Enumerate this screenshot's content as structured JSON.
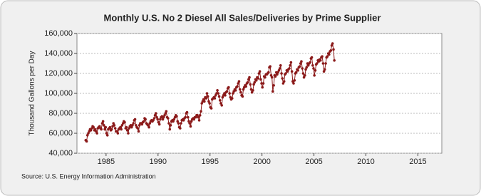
{
  "chart_data": {
    "type": "line",
    "title": "Monthly U.S. No 2 Diesel All Sales/Deliveries by Prime Supplier",
    "y_label": "Thousand Gallons per Day",
    "source": "Source: U.S. Energy Information Administration",
    "x": [
      1983.04,
      1983.13,
      1983.21,
      1983.29,
      1983.38,
      1983.46,
      1983.54,
      1983.63,
      1983.71,
      1983.79,
      1983.88,
      1983.96,
      1984.04,
      1984.13,
      1984.21,
      1984.29,
      1984.38,
      1984.46,
      1984.54,
      1984.63,
      1984.71,
      1984.79,
      1984.88,
      1984.96,
      1985.04,
      1985.13,
      1985.21,
      1985.29,
      1985.38,
      1985.46,
      1985.54,
      1985.63,
      1985.71,
      1985.79,
      1985.88,
      1985.96,
      1986.04,
      1986.13,
      1986.21,
      1986.29,
      1986.38,
      1986.46,
      1986.54,
      1986.63,
      1986.71,
      1986.79,
      1986.88,
      1986.96,
      1987.04,
      1987.13,
      1987.21,
      1987.29,
      1987.38,
      1987.46,
      1987.54,
      1987.63,
      1987.71,
      1987.79,
      1987.88,
      1987.96,
      1988.04,
      1988.13,
      1988.21,
      1988.29,
      1988.38,
      1988.46,
      1988.54,
      1988.63,
      1988.71,
      1988.79,
      1988.88,
      1988.96,
      1989.04,
      1989.13,
      1989.21,
      1989.29,
      1989.38,
      1989.46,
      1989.54,
      1989.63,
      1989.71,
      1989.79,
      1989.88,
      1989.96,
      1990.04,
      1990.13,
      1990.21,
      1990.29,
      1990.38,
      1990.46,
      1990.54,
      1990.63,
      1990.71,
      1990.79,
      1990.88,
      1990.96,
      1991.04,
      1991.13,
      1991.21,
      1991.29,
      1991.38,
      1991.46,
      1991.54,
      1991.63,
      1991.71,
      1991.79,
      1991.88,
      1991.96,
      1992.04,
      1992.13,
      1992.21,
      1992.29,
      1992.38,
      1992.46,
      1992.54,
      1992.63,
      1992.71,
      1992.79,
      1992.88,
      1992.96,
      1993.04,
      1993.13,
      1993.21,
      1993.29,
      1993.38,
      1993.46,
      1993.54,
      1993.63,
      1993.71,
      1993.79,
      1993.88,
      1993.96,
      1994.04,
      1994.13,
      1994.21,
      1994.29,
      1994.38,
      1994.46,
      1994.54,
      1994.63,
      1994.71,
      1994.79,
      1994.88,
      1994.96,
      1995.04,
      1995.13,
      1995.21,
      1995.29,
      1995.38,
      1995.46,
      1995.54,
      1995.63,
      1995.71,
      1995.79,
      1995.88,
      1995.96,
      1996.04,
      1996.13,
      1996.21,
      1996.29,
      1996.38,
      1996.46,
      1996.54,
      1996.63,
      1996.71,
      1996.79,
      1996.88,
      1996.96,
      1997.04,
      1997.13,
      1997.21,
      1997.29,
      1997.38,
      1997.46,
      1997.54,
      1997.63,
      1997.71,
      1997.79,
      1997.88,
      1997.96,
      1998.04,
      1998.13,
      1998.21,
      1998.29,
      1998.38,
      1998.46,
      1998.54,
      1998.63,
      1998.71,
      1998.79,
      1998.88,
      1998.96,
      1999.04,
      1999.13,
      1999.21,
      1999.29,
      1999.38,
      1999.46,
      1999.54,
      1999.63,
      1999.71,
      1999.79,
      1999.88,
      1999.96,
      2000.04,
      2000.13,
      2000.21,
      2000.29,
      2000.38,
      2000.46,
      2000.54,
      2000.63,
      2000.71,
      2000.79,
      2000.88,
      2000.96,
      2001.04,
      2001.13,
      2001.21,
      2001.29,
      2001.38,
      2001.46,
      2001.54,
      2001.63,
      2001.71,
      2001.79,
      2001.88,
      2001.96,
      2002.04,
      2002.13,
      2002.21,
      2002.29,
      2002.38,
      2002.46,
      2002.54,
      2002.63,
      2002.71,
      2002.79,
      2002.88,
      2002.96,
      2003.04,
      2003.13,
      2003.21,
      2003.29,
      2003.38,
      2003.46,
      2003.54,
      2003.63,
      2003.71,
      2003.79,
      2003.88,
      2003.96,
      2004.04,
      2004.13,
      2004.21,
      2004.29,
      2004.38,
      2004.46,
      2004.54,
      2004.63,
      2004.71,
      2004.79,
      2004.88,
      2004.96,
      2005.04,
      2005.13,
      2005.21,
      2005.29,
      2005.38,
      2005.46,
      2005.54,
      2005.63,
      2005.71,
      2005.79,
      2005.88,
      2005.96,
      2006.04,
      2006.13,
      2006.21,
      2006.29,
      2006.38,
      2006.46,
      2006.54,
      2006.63,
      2006.71,
      2006.79,
      2006.88,
      2006.96
    ],
    "values": [
      53000,
      52000,
      58000,
      60000,
      62000,
      64000,
      63000,
      65000,
      67000,
      66000,
      63000,
      64000,
      62000,
      60000,
      65000,
      66000,
      67000,
      65000,
      64000,
      70000,
      72000,
      68000,
      64000,
      66000,
      60000,
      58000,
      64000,
      65000,
      66000,
      63000,
      64000,
      67000,
      70000,
      68000,
      65000,
      62000,
      62000,
      60000,
      64000,
      65000,
      66000,
      64000,
      68000,
      70000,
      72000,
      71000,
      65000,
      66000,
      63000,
      60000,
      65000,
      67000,
      68000,
      66000,
      68000,
      70000,
      73000,
      74000,
      68000,
      66000,
      65000,
      62000,
      68000,
      70000,
      70000,
      69000,
      71000,
      72000,
      75000,
      74000,
      70000,
      69000,
      68000,
      66000,
      70000,
      72000,
      73000,
      72000,
      73000,
      75000,
      78000,
      80000,
      76000,
      74000,
      71000,
      69000,
      74000,
      76000,
      77000,
      74000,
      76000,
      78000,
      80000,
      82000,
      76000,
      75000,
      70000,
      64000,
      68000,
      72000,
      73000,
      72000,
      74000,
      76000,
      78000,
      77000,
      72000,
      70000,
      66000,
      65000,
      70000,
      73000,
      74000,
      73000,
      75000,
      76000,
      80000,
      81000,
      76000,
      72000,
      70000,
      67000,
      72000,
      74000,
      75000,
      74000,
      76000,
      76000,
      78000,
      78000,
      76000,
      73000,
      78000,
      82000,
      90000,
      92000,
      94000,
      92000,
      96000,
      95000,
      100000,
      97000,
      92000,
      90000,
      86000,
      85000,
      94000,
      95000,
      96000,
      95000,
      98000,
      100000,
      103000,
      100000,
      97000,
      93000,
      90000,
      88000,
      96000,
      98000,
      100000,
      98000,
      101000,
      102000,
      105000,
      106000,
      100000,
      96000,
      94000,
      95000,
      100000,
      102000,
      104000,
      103000,
      106000,
      107000,
      110000,
      112000,
      104000,
      101000,
      98000,
      97000,
      104000,
      106000,
      108000,
      107000,
      110000,
      111000,
      114000,
      116000,
      109000,
      104000,
      101000,
      103000,
      109000,
      111000,
      114000,
      113000,
      116000,
      115000,
      120000,
      122000,
      114000,
      110000,
      106000,
      110000,
      117000,
      116000,
      119000,
      119000,
      120000,
      121000,
      126000,
      127000,
      118000,
      116000,
      102000,
      108000,
      118000,
      117000,
      121000,
      119000,
      121000,
      123000,
      125000,
      128000,
      120000,
      115000,
      110000,
      112000,
      119000,
      120000,
      123000,
      122000,
      124000,
      125000,
      128000,
      131000,
      122000,
      112000,
      110000,
      113000,
      120000,
      121000,
      124000,
      123000,
      126000,
      127000,
      130000,
      132000,
      125000,
      120000,
      116000,
      118000,
      124000,
      126000,
      130000,
      128000,
      130000,
      131000,
      135000,
      136000,
      128000,
      125000,
      118000,
      123000,
      129000,
      130000,
      133000,
      132000,
      134000,
      133000,
      136000,
      137000,
      130000,
      122000,
      124000,
      130000,
      136000,
      137000,
      140000,
      139000,
      142000,
      143000,
      148000,
      150000,
      144000,
      133000
    ],
    "color": "#8b1a1a",
    "xlim": [
      1982.2,
      2017.3
    ],
    "xticks": [
      1985,
      1990,
      1995,
      2000,
      2005,
      2010,
      2015
    ],
    "ylim": [
      40000,
      160000
    ],
    "yticks": [
      {
        "value": 40000,
        "label": "40,000"
      },
      {
        "value": 60000,
        "label": "60,000"
      },
      {
        "value": 80000,
        "label": "80,000"
      },
      {
        "value": 100000,
        "label": "100,000"
      },
      {
        "value": 120000,
        "label": "120,000"
      },
      {
        "value": 140000,
        "label": "140,000"
      },
      {
        "value": 160000,
        "label": "160,000"
      }
    ],
    "grid": true
  }
}
